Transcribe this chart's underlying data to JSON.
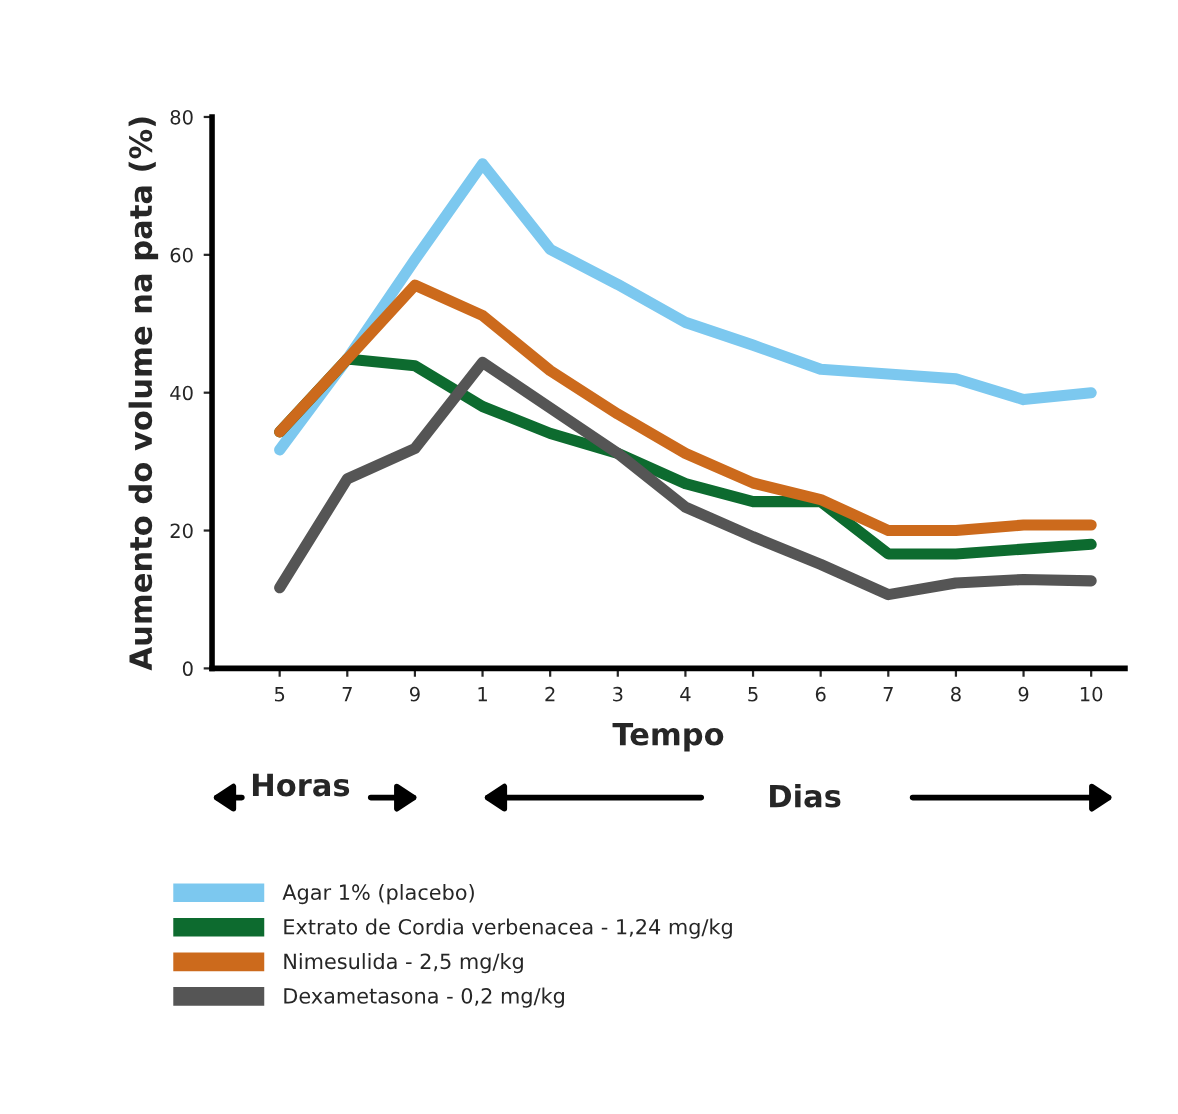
{
  "chart_data": {
    "type": "line",
    "xlabel": "Tempo",
    "ylabel": "Aumento do volume na pata (%)",
    "categories": [
      "5",
      "7",
      "9",
      "1",
      "2",
      "3",
      "4",
      "5",
      "6",
      "7",
      "8",
      "9",
      "10"
    ],
    "ylim": [
      0,
      80
    ],
    "yticks": [
      0,
      20,
      40,
      60,
      80
    ],
    "grid": false,
    "legend": "bottom",
    "marker": "none",
    "line_style": "solid",
    "annotations": [
      "Horas",
      "Dias"
    ],
    "series": [
      {
        "name": "Agar 1% (placebo)",
        "color": "#7cc8ef",
        "values": [
          31.7,
          44.9,
          59.3,
          73.2,
          60.8,
          55.7,
          50.2,
          46.9,
          43.4,
          42.7,
          42,
          39,
          40
        ]
      },
      {
        "name": "Extrato de Cordia verbenacea - 1,24 mg/kg",
        "color": "#0d6b2f",
        "values": [
          34.3,
          44.9,
          43.9,
          38,
          34.1,
          31.2,
          26.8,
          24.2,
          24.2,
          16.6,
          16.6,
          17.3,
          18
        ]
      },
      {
        "name": "Nimesulida - 2,5 mg/kg",
        "color": "#cc6a1c",
        "values": [
          34.3,
          44.9,
          55.6,
          51.2,
          43.2,
          36.9,
          31.2,
          26.9,
          24.5,
          20,
          20,
          20.8,
          20.8
        ]
      },
      {
        "name": "Dexametasona - 0,2 mg/kg",
        "color": "#555555",
        "values": [
          11.7,
          27.5,
          31.9,
          44.4,
          37.8,
          31.2,
          23.4,
          19.1,
          15.1,
          10.7,
          12.4,
          12.9,
          12.7
        ]
      }
    ]
  }
}
